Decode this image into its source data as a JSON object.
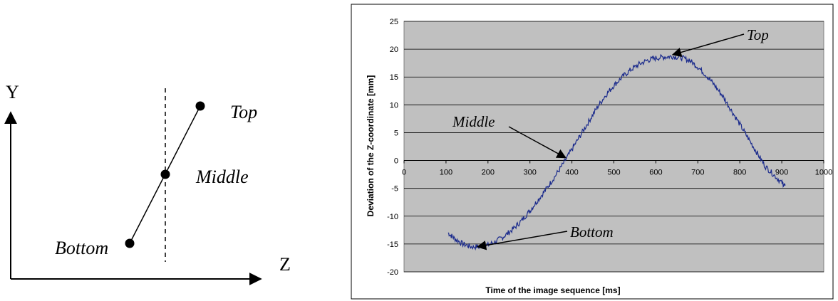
{
  "diagram": {
    "y_axis_label": "Y",
    "z_axis_label": "Z",
    "points": {
      "top": "Top",
      "middle": "Middle",
      "bottom": "Bottom"
    }
  },
  "chart_data": {
    "type": "line",
    "title": "",
    "xlabel": "Time of the image sequence [ms]",
    "ylabel": "Deviation of the Z-coordinate [mm]",
    "xlim": [
      0,
      1000
    ],
    "ylim": [
      -20,
      25
    ],
    "x_ticks": [
      "0",
      "100",
      "200",
      "300",
      "400",
      "500",
      "600",
      "700",
      "800",
      "900",
      "1000"
    ],
    "y_ticks": [
      "25",
      "20",
      "15",
      "10",
      "5",
      "0",
      "-5",
      "-10",
      "-15",
      "-20"
    ],
    "grid": "horizontal",
    "plot_background": "#c0c0c0",
    "series": [
      {
        "color": "#1a2a8c",
        "x": [
          105,
          120,
          140,
          160,
          180,
          200,
          220,
          240,
          260,
          280,
          300,
          320,
          340,
          360,
          380,
          400,
          420,
          440,
          460,
          480,
          500,
          520,
          540,
          560,
          580,
          600,
          620,
          640,
          660,
          680,
          700,
          720,
          740,
          760,
          780,
          800,
          820,
          840,
          860,
          880,
          900,
          908
        ],
        "y": [
          -13,
          -14,
          -15,
          -15.5,
          -15.5,
          -15.2,
          -14.5,
          -13.5,
          -12.3,
          -10.8,
          -9,
          -7,
          -5,
          -2.8,
          -0.5,
          2,
          4.5,
          7,
          9.5,
          11.7,
          13.5,
          15,
          16.3,
          17.3,
          18,
          18.4,
          18.6,
          18.7,
          18.5,
          18,
          16.8,
          15.3,
          13.5,
          11.5,
          9,
          6.5,
          4,
          1.5,
          -1,
          -2.5,
          -4,
          -4.5
        ]
      }
    ],
    "annotations": [
      {
        "text": "Top",
        "x": 640,
        "y": 19
      },
      {
        "text": "Middle",
        "x": 385,
        "y": 0.5
      },
      {
        "text": "Bottom",
        "x": 175,
        "y": -15.5
      }
    ]
  }
}
